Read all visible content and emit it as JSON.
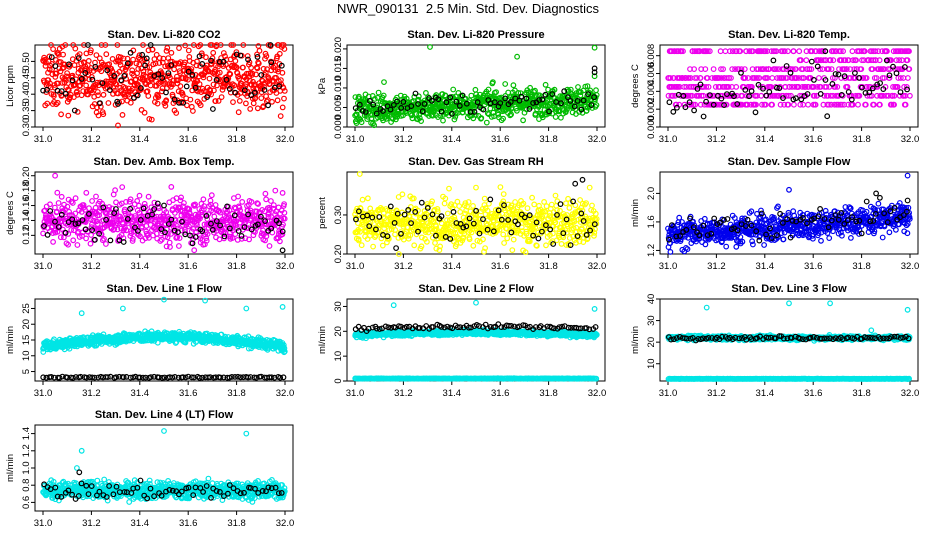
{
  "figure_title": "NWR_090131  2.5 Min. Std. Dev. Diagnostics",
  "chart_data": [
    {
      "type": "scatter",
      "title": "Stan. Dev. Li-820 CO2",
      "ylabel": "Licor ppm",
      "xlim": [
        31.0,
        32.0
      ],
      "ylim": [
        0.3,
        0.55
      ],
      "x_ticks": [
        "31.0",
        "31.2",
        "31.4",
        "31.6",
        "31.8",
        "32.0"
      ],
      "y_ticks": [
        0.3,
        0.35,
        0.4,
        0.45,
        0.5
      ],
      "y_tick_labels": [
        "0.30",
        "0.35",
        "0.40",
        "0.45",
        "0.50"
      ],
      "series": [
        {
          "color": "#ff0000",
          "n": 700,
          "center": 0.45,
          "spread": 0.05,
          "trend": 0.0,
          "outliers": [
            [
              31.31,
              0.305
            ],
            [
              31.08,
              0.545
            ],
            [
              31.97,
              0.55
            ],
            [
              31.47,
              0.52
            ]
          ]
        },
        {
          "color": "#000000",
          "n": 70,
          "center": 0.45,
          "spread": 0.05,
          "trend": 0.0,
          "outliers": [
            [
              31.31,
              0.37
            ],
            [
              31.94,
              0.555
            ],
            [
              31.41,
              0.52
            ]
          ]
        }
      ]
    },
    {
      "type": "scatter",
      "title": "Stan. Dev. Li-820 Pressure",
      "ylabel": "kPa",
      "xlim": [
        31.0,
        32.0
      ],
      "ylim": [
        0.0,
        0.021
      ],
      "x_ticks": [
        "31.0",
        "31.2",
        "31.4",
        "31.6",
        "31.8",
        "32.0"
      ],
      "y_ticks": [
        0.0,
        0.005,
        0.01,
        0.015,
        0.02
      ],
      "y_tick_labels": [
        "0.000",
        "0.005",
        "0.010",
        "0.015",
        "0.020"
      ],
      "series": [
        {
          "color": "#00bb00",
          "n": 700,
          "center": 0.0045,
          "spread": 0.0018,
          "trend": 0.0025,
          "outliers": [
            [
              31.31,
              0.0205
            ],
            [
              31.99,
              0.0203
            ],
            [
              31.67,
              0.018
            ],
            [
              31.12,
              0.0115
            ],
            [
              31.57,
              0.0115
            ],
            [
              31.99,
              0.013
            ]
          ]
        },
        {
          "color": "#000000",
          "n": 70,
          "center": 0.0045,
          "spread": 0.0014,
          "trend": 0.0025,
          "outliers": [
            [
              31.99,
              0.015
            ],
            [
              31.99,
              0.014
            ]
          ]
        }
      ]
    },
    {
      "type": "scatter",
      "title": "Stan. Dev. Li-820 Temp.",
      "ylabel": "degrees C",
      "xlim": [
        31.0,
        32.0
      ],
      "ylim": [
        0.0,
        0.0092
      ],
      "x_ticks": [
        "31.0",
        "31.2",
        "31.4",
        "31.6",
        "31.8",
        "32.0"
      ],
      "y_ticks": [
        0.0,
        0.002,
        0.004,
        0.006,
        0.008
      ],
      "y_tick_labels": [
        "0.000",
        "0.002",
        "0.004",
        "0.006",
        "0.008"
      ],
      "levels": [
        0.0,
        0.0025,
        0.0035,
        0.0045,
        0.0055,
        0.0065,
        0.0075,
        0.0085
      ],
      "series": [
        {
          "color": "#ee00ee",
          "n": 650,
          "center": 0.0035,
          "spread": 0.0015,
          "trend": 0.003,
          "outliers": []
        },
        {
          "color": "#000000",
          "n": 70,
          "center": 0.003,
          "spread": 0.0015,
          "trend": 0.0025,
          "outliers": [
            [
              31.65,
              0.0085
            ]
          ]
        }
      ]
    },
    {
      "type": "scatter",
      "title": "Stan. Dev. Amb. Box Temp.",
      "ylabel": "degrees C",
      "xlim": [
        31.0,
        32.0
      ],
      "ylim": [
        0.095,
        0.205
      ],
      "x_ticks": [
        "31.0",
        "31.2",
        "31.4",
        "31.6",
        "31.8",
        "32.0"
      ],
      "y_ticks": [
        0.12,
        0.14,
        0.16,
        0.18,
        0.2
      ],
      "y_tick_labels": [
        "0.12",
        "0.14",
        "0.16",
        "0.18",
        "0.20"
      ],
      "series": [
        {
          "color": "#ee00ee",
          "n": 700,
          "center": 0.14,
          "spread": 0.015,
          "trend": 0.0,
          "outliers": [
            [
              31.05,
              0.2
            ],
            [
              31.53,
              0.185
            ],
            [
              31.96,
              0.18
            ]
          ]
        },
        {
          "color": "#000000",
          "n": 70,
          "center": 0.135,
          "spread": 0.012,
          "trend": 0.0,
          "outliers": [
            [
              31.99,
              0.1
            ],
            [
              31.5,
              0.16
            ]
          ]
        }
      ]
    },
    {
      "type": "scatter",
      "title": "Stan. Dev. Gas Stream RH",
      "ylabel": "percent",
      "xlim": [
        31.0,
        32.0
      ],
      "ylim": [
        0.2,
        0.41
      ],
      "x_ticks": [
        "31.0",
        "31.2",
        "31.4",
        "31.6",
        "31.8",
        "32.0"
      ],
      "y_ticks": [
        0.2,
        0.3
      ],
      "y_tick_labels": [
        "0.20",
        "0.30"
      ],
      "series": [
        {
          "color": "#ffff00",
          "n": 700,
          "center": 0.28,
          "spread": 0.03,
          "trend": 0.0,
          "outliers": [
            [
              31.02,
              0.405
            ],
            [
              31.5,
              0.37
            ],
            [
              31.97,
              0.37
            ],
            [
              31.65,
              0.21
            ]
          ]
        },
        {
          "color": "#000000",
          "n": 70,
          "center": 0.28,
          "spread": 0.028,
          "trend": 0.0,
          "outliers": [
            [
              31.94,
              0.39
            ],
            [
              31.91,
              0.38
            ],
            [
              31.17,
              0.215
            ]
          ]
        }
      ]
    },
    {
      "type": "scatter",
      "title": "Stan. Dev. Sample Flow",
      "ylabel": "ml/min",
      "xlim": [
        31.0,
        32.0
      ],
      "ylim": [
        1.15,
        2.3
      ],
      "x_ticks": [
        "31.0",
        "31.2",
        "31.4",
        "31.6",
        "31.8",
        "32.0"
      ],
      "y_ticks": [
        1.2,
        1.6,
        2.0
      ],
      "y_tick_labels": [
        "1.2",
        "1.6",
        "2.0"
      ],
      "series": [
        {
          "color": "#0000ee",
          "n": 700,
          "center": 1.42,
          "spread": 0.1,
          "trend": 0.25,
          "outliers": [
            [
              31.99,
              2.25
            ],
            [
              31.5,
              2.05
            ],
            [
              31.01,
              1.18
            ]
          ]
        },
        {
          "color": "#000000",
          "n": 70,
          "center": 1.45,
          "spread": 0.1,
          "trend": 0.25,
          "outliers": [
            [
              31.86,
              2.0
            ],
            [
              31.99,
              1.9
            ]
          ]
        }
      ]
    },
    {
      "type": "scatter",
      "title": "Stan. Dev. Line 1 Flow",
      "ylabel": "ml/min",
      "xlim": [
        31.0,
        32.0
      ],
      "ylim": [
        2.0,
        28.0
      ],
      "x_ticks": [
        "31.0",
        "31.2",
        "31.4",
        "31.6",
        "31.8",
        "32.0"
      ],
      "y_ticks": [
        5,
        10,
        15,
        20,
        25
      ],
      "y_tick_labels": [
        "5",
        "10",
        "15",
        "20",
        "25"
      ],
      "series": [
        {
          "color": "#00e5e5",
          "n": 800,
          "center": 13.0,
          "spread": 0.8,
          "trend": 0.0,
          "hump": 3.0,
          "outliers": [
            [
              31.16,
              23.5
            ],
            [
              31.33,
              25
            ],
            [
              31.5,
              27.8
            ],
            [
              31.67,
              27.5
            ],
            [
              31.84,
              25
            ],
            [
              31.99,
              25.5
            ]
          ]
        },
        {
          "color": "#000000",
          "n": 90,
          "center": 3.2,
          "spread": 0.1,
          "trend": 0.0,
          "outliers": []
        }
      ]
    },
    {
      "type": "scatter",
      "title": "Stan. Dev. Line 2 Flow",
      "ylabel": "ml/min",
      "xlim": [
        31.0,
        32.0
      ],
      "ylim": [
        0.0,
        33.0
      ],
      "x_ticks": [
        "31.0",
        "31.2",
        "31.4",
        "31.6",
        "31.8",
        "32.0"
      ],
      "y_ticks": [
        0,
        10,
        20,
        30
      ],
      "y_tick_labels": [
        "0",
        "10",
        "20",
        "30"
      ],
      "series": [
        {
          "color": "#00e5e5",
          "n": 800,
          "center": 18.5,
          "spread": 0.5,
          "trend": 0.0,
          "hump": 1.0,
          "outliers": [
            [
              31.16,
              30.5
            ],
            [
              31.5,
              31.5
            ],
            [
              31.99,
              29.0
            ]
          ]
        },
        {
          "color": "#00e5e5",
          "n": 250,
          "center": 1.0,
          "spread": 0.05,
          "trend": 0.0,
          "outliers": []
        },
        {
          "color": "#000000",
          "n": 90,
          "center": 21.0,
          "spread": 0.4,
          "trend": 0.0,
          "hump": 1.0,
          "outliers": []
        }
      ]
    },
    {
      "type": "scatter",
      "title": "Stan. Dev. Line 3 Flow",
      "ylabel": "ml/min",
      "xlim": [
        31.0,
        32.0
      ],
      "ylim": [
        2.0,
        40.0
      ],
      "x_ticks": [
        "31.0",
        "31.2",
        "31.4",
        "31.6",
        "31.8",
        "32.0"
      ],
      "y_ticks": [
        10,
        20,
        30,
        40
      ],
      "y_tick_labels": [
        "10",
        "20",
        "30",
        "40"
      ],
      "series": [
        {
          "color": "#00e5e5",
          "n": 600,
          "center": 22.0,
          "spread": 0.5,
          "trend": 0.0,
          "outliers": [
            [
              31.16,
              36.0
            ],
            [
              31.5,
              38.0
            ],
            [
              31.67,
              38.0
            ],
            [
              31.99,
              35.0
            ],
            [
              31.84,
              25.5
            ]
          ]
        },
        {
          "color": "#00e5e5",
          "n": 250,
          "center": 3.0,
          "spread": 0.05,
          "trend": 0.0,
          "outliers": []
        },
        {
          "color": "#000000",
          "n": 90,
          "center": 22.0,
          "spread": 0.4,
          "trend": 0.0,
          "outliers": []
        }
      ]
    },
    {
      "type": "scatter",
      "title": "Stan. Dev. Line 4 (LT) Flow",
      "ylabel": "ml/min",
      "xlim": [
        31.0,
        32.0
      ],
      "ylim": [
        0.5,
        1.5
      ],
      "x_ticks": [
        "31.0",
        "31.2",
        "31.4",
        "31.6",
        "31.8",
        "32.0"
      ],
      "y_ticks": [
        0.6,
        0.8,
        1.0,
        1.2,
        1.4
      ],
      "y_tick_labels": [
        "0.6",
        "0.8",
        "1.0",
        "1.2",
        "1.4"
      ],
      "series": [
        {
          "color": "#00e5e5",
          "n": 750,
          "center": 0.74,
          "spread": 0.05,
          "trend": 0.0,
          "outliers": [
            [
              31.16,
              1.2
            ],
            [
              31.5,
              1.43
            ],
            [
              31.84,
              1.4
            ],
            [
              31.14,
              1.0
            ]
          ]
        },
        {
          "color": "#000000",
          "n": 70,
          "center": 0.73,
          "spread": 0.05,
          "trend": 0.0,
          "outliers": [
            [
              31.15,
              0.95
            ]
          ]
        }
      ]
    }
  ]
}
